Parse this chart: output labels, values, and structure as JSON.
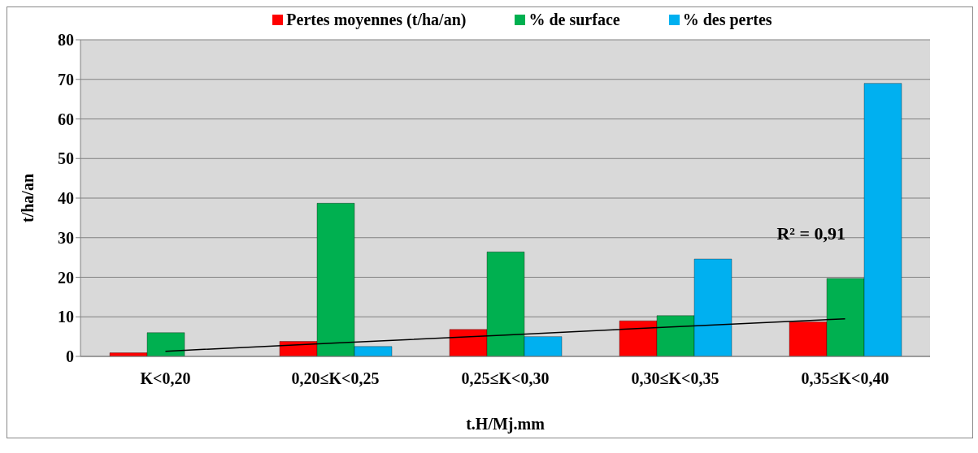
{
  "chart_data": {
    "type": "bar",
    "xlabel": "t.H/Mj.mm",
    "ylabel": "t/ha/an",
    "categories": [
      "K<0,20",
      "0,20≤K<0,25",
      "0,25≤K<0,30",
      "0,30≤K<0,35",
      "0,35≤K<0,40"
    ],
    "series": [
      {
        "name": "Pertes moyennes (t/ha/an)",
        "color": "#ff0000",
        "values": [
          0.9,
          3.8,
          6.8,
          9,
          8.7
        ]
      },
      {
        "name": "% de surface",
        "color": "#00b050",
        "values": [
          6,
          38.7,
          26.4,
          10.3,
          19.7
        ]
      },
      {
        "name": "% des pertes",
        "color": "#00b0f0",
        "values": [
          null,
          2.5,
          5,
          24.6,
          69
        ]
      },
      {
        "type": "line",
        "color": "#000000",
        "values": [
          1.3,
          3.4,
          5.4,
          7.5,
          9.5
        ]
      }
    ],
    "ylim": [
      0,
      80
    ],
    "yticks": [
      0,
      10,
      20,
      30,
      40,
      50,
      60,
      70,
      80
    ],
    "grid": "y",
    "legend": "top",
    "marker": "none",
    "annotations": [
      "R² = 0,91"
    ]
  }
}
